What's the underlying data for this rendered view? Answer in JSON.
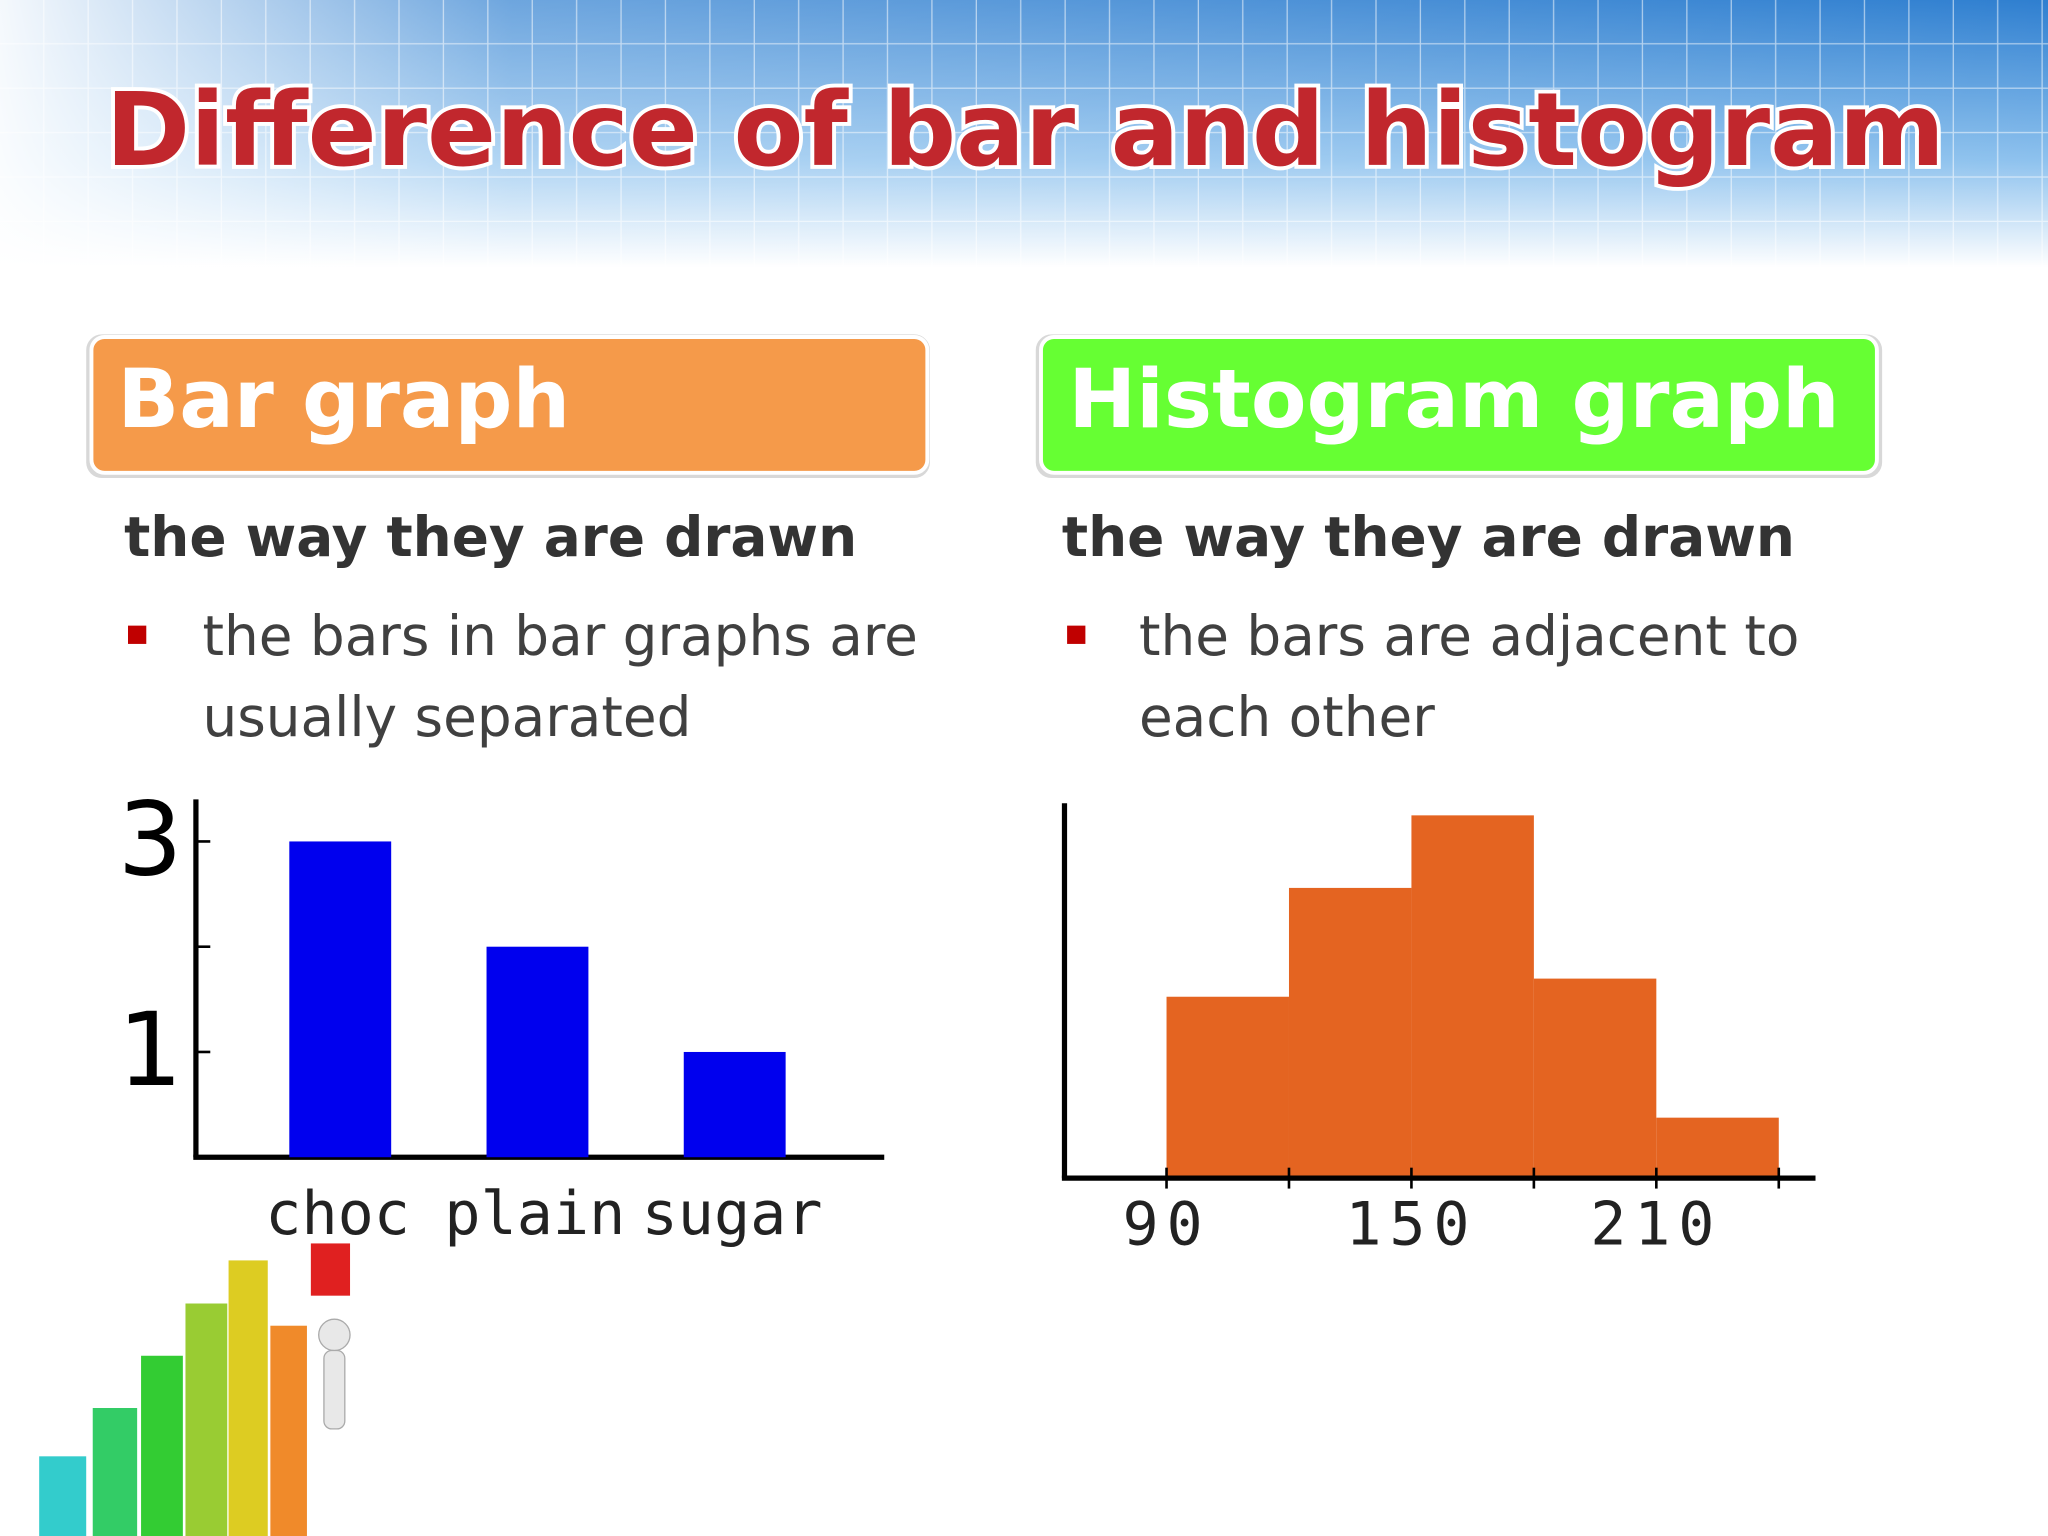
{
  "title": "Difference of bar and histogram",
  "panels": [
    {
      "heading": "Bar graph",
      "subheading": "the way they are drawn",
      "bullet_lines": [
        "the bars in bar graphs are",
        "usually separated"
      ]
    },
    {
      "heading": "Histogram graph",
      "subheading": "the way they are drawn",
      "bullet_lines": [
        "the bars are adjacent to",
        "each other"
      ]
    }
  ],
  "chart_data": [
    {
      "type": "bar",
      "categories": [
        "choc",
        "plain",
        "sugar"
      ],
      "values": [
        3,
        2,
        1
      ],
      "color": "#0000ee",
      "ylim": [
        0,
        3.4
      ],
      "yticks": [
        1,
        {
          "value": 2,
          "label": null
        },
        3
      ]
    },
    {
      "type": "histogram",
      "bins": [
        90,
        120,
        150,
        180,
        210,
        240
      ],
      "values": [
        3,
        4.8,
        6,
        3.3,
        1
      ],
      "color": "#e46421",
      "xlim": [
        65,
        249
      ],
      "ylim": [
        0,
        6.2
      ],
      "xticks": [
        90,
        {
          "value": 120,
          "label": null
        },
        150,
        {
          "value": 180,
          "label": null
        },
        210,
        {
          "value": 240,
          "label": null
        }
      ]
    }
  ]
}
